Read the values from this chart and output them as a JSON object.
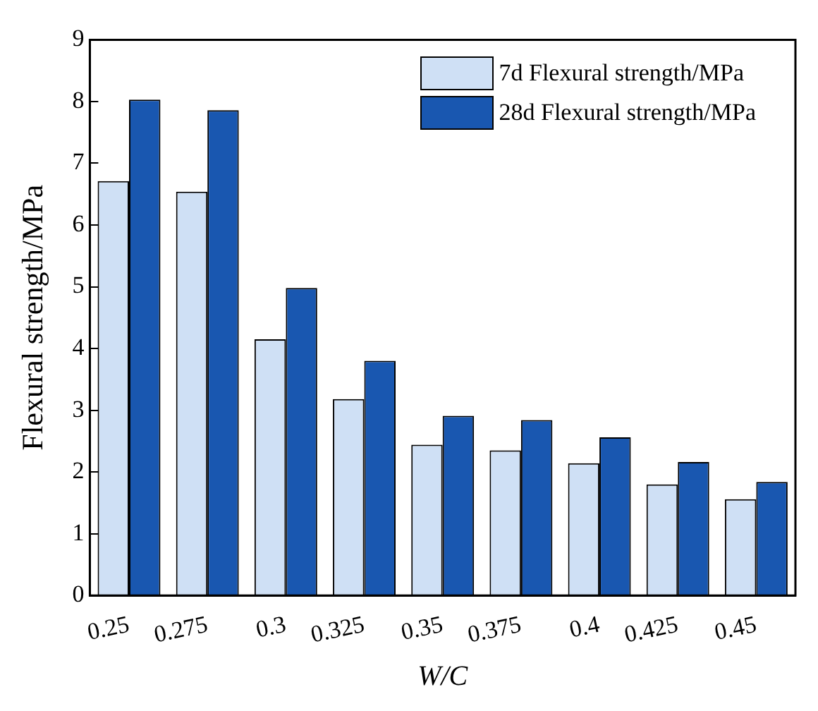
{
  "chart_data": {
    "type": "bar",
    "xlabel": "W/C",
    "ylabel": "Flexural strength/MPa",
    "categories": [
      "0.25",
      "0.275",
      "0.3",
      "0.325",
      "0.35",
      "0.375",
      "0.4",
      "0.425",
      "0.45"
    ],
    "series": [
      {
        "name": "7d Flexural strength/MPa",
        "color": "#cfe0f5",
        "values": [
          6.71,
          6.54,
          4.15,
          3.18,
          2.44,
          2.35,
          2.14,
          1.8,
          1.56
        ]
      },
      {
        "name": "28d Flexural strength/MPa",
        "color": "#1957b0",
        "values": [
          8.03,
          7.86,
          4.98,
          3.8,
          2.91,
          2.84,
          2.56,
          2.16,
          1.84
        ]
      }
    ],
    "ylim": [
      0,
      9
    ],
    "yticks": [
      0,
      1,
      2,
      3,
      4,
      5,
      6,
      7,
      8,
      9
    ],
    "grid": false,
    "legend": "top right"
  }
}
